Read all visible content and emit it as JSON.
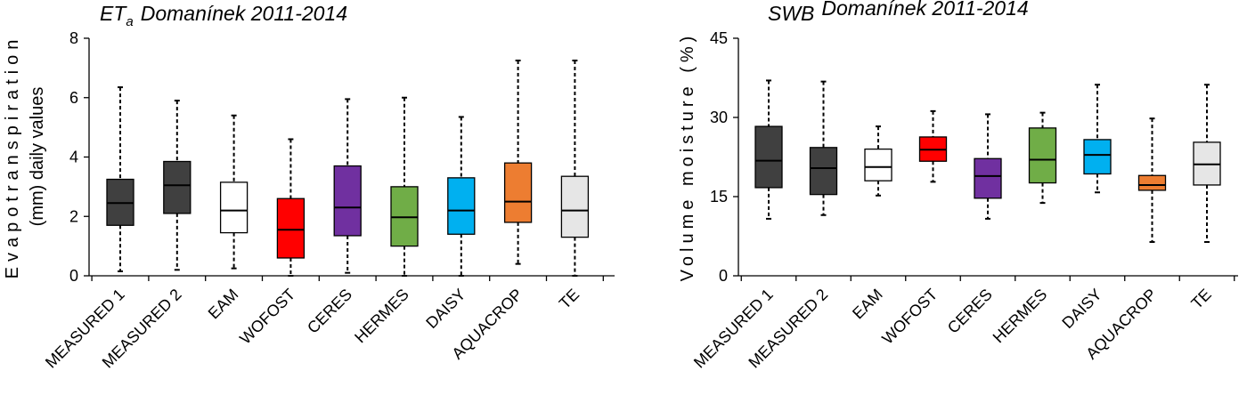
{
  "chart_data": [
    {
      "type": "box",
      "title_main": "ET",
      "title_sub": "a",
      "title_rest": "Domanínek 2011-2014",
      "ylabel_line1": "Evapotranspiration",
      "ylabel_line2": "(mm) daily values",
      "ylim": [
        0,
        8
      ],
      "yticks": [
        0,
        2,
        4,
        6,
        8
      ],
      "yticklabels": [
        "0",
        "2",
        "4",
        "6",
        "8"
      ],
      "categories": [
        "MEASURED 1",
        "MEASURED 2",
        "EAM",
        "WOFOST",
        "CERES",
        "HERMES",
        "DAISY",
        "AQUACROP",
        "TE"
      ],
      "colors": [
        "#404040",
        "#404040",
        "#ffffff",
        "#ff0000",
        "#7030a0",
        "#70ad47",
        "#00b0f0",
        "#ed7d31",
        "#e6e6e6"
      ],
      "boxes": [
        {
          "min": 0.15,
          "q1": 1.7,
          "median": 2.45,
          "q3": 3.25,
          "max": 6.35
        },
        {
          "min": 0.2,
          "q1": 2.1,
          "median": 3.05,
          "q3": 3.85,
          "max": 5.9
        },
        {
          "min": 0.25,
          "q1": 1.45,
          "median": 2.2,
          "q3": 3.15,
          "max": 5.4
        },
        {
          "min": 0.0,
          "q1": 0.6,
          "median": 1.55,
          "q3": 2.6,
          "max": 4.6
        },
        {
          "min": 0.1,
          "q1": 1.35,
          "median": 2.3,
          "q3": 3.7,
          "max": 5.95
        },
        {
          "min": 0.0,
          "q1": 1.0,
          "median": 1.97,
          "q3": 3.0,
          "max": 6.0
        },
        {
          "min": 0.0,
          "q1": 1.4,
          "median": 2.2,
          "q3": 3.3,
          "max": 5.35
        },
        {
          "min": 0.4,
          "q1": 1.8,
          "median": 2.5,
          "q3": 3.8,
          "max": 7.25
        },
        {
          "min": 0.0,
          "q1": 1.3,
          "median": 2.2,
          "q3": 3.35,
          "max": 7.25
        }
      ]
    },
    {
      "type": "box",
      "title_main": "SWB",
      "title_sub": "",
      "title_rest": "Domanínek 2011-2014",
      "ylabel_line1": "Volume moisture (%)",
      "ylabel_line2": "",
      "ylim": [
        0,
        45
      ],
      "yticks": [
        0,
        15,
        30,
        45
      ],
      "yticklabels": [
        "0",
        "15",
        "30",
        "45"
      ],
      "categories": [
        "MEASURED 1",
        "MEASURED 2",
        "EAM",
        "WOFOST",
        "CERES",
        "HERMES",
        "DAISY",
        "AQUACROP",
        "TE"
      ],
      "colors": [
        "#404040",
        "#404040",
        "#ffffff",
        "#ff0000",
        "#7030a0",
        "#70ad47",
        "#00b0f0",
        "#ed7d31",
        "#e6e6e6"
      ],
      "boxes": [
        {
          "min": 10.8,
          "q1": 16.7,
          "median": 21.8,
          "q3": 28.3,
          "max": 37.0
        },
        {
          "min": 11.5,
          "q1": 15.4,
          "median": 20.4,
          "q3": 24.3,
          "max": 36.8
        },
        {
          "min": 15.2,
          "q1": 18.0,
          "median": 20.6,
          "q3": 24.0,
          "max": 28.3
        },
        {
          "min": 17.8,
          "q1": 21.7,
          "median": 23.9,
          "q3": 26.3,
          "max": 31.2
        },
        {
          "min": 10.8,
          "q1": 14.7,
          "median": 18.9,
          "q3": 22.2,
          "max": 30.6
        },
        {
          "min": 13.8,
          "q1": 17.6,
          "median": 22.0,
          "q3": 28.0,
          "max": 30.9
        },
        {
          "min": 15.8,
          "q1": 19.3,
          "median": 22.9,
          "q3": 25.8,
          "max": 36.2
        },
        {
          "min": 6.4,
          "q1": 16.2,
          "median": 17.2,
          "q3": 19.0,
          "max": 29.8
        },
        {
          "min": 6.4,
          "q1": 17.2,
          "median": 21.1,
          "q3": 25.3,
          "max": 36.2
        }
      ]
    }
  ]
}
